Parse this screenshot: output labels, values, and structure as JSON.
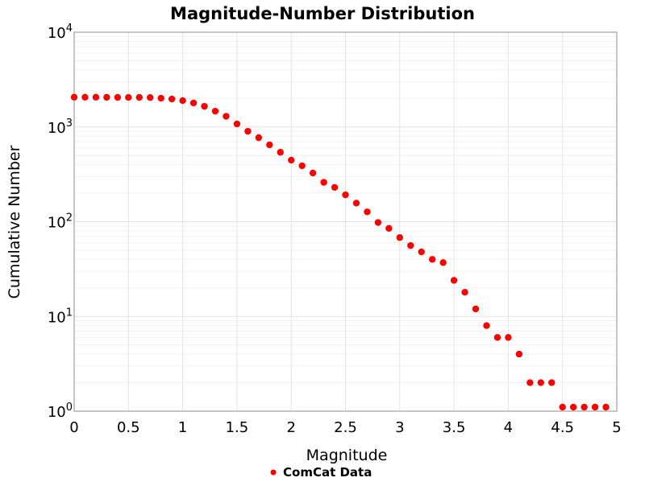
{
  "chart_data": {
    "type": "scatter",
    "title": "Magnitude-Number Distribution",
    "xlabel": "Magnitude",
    "ylabel": "Cumulative Number",
    "legend": {
      "label": "ComCat Data",
      "marker": "circle",
      "marker_color": "#ff0000",
      "position": "below-x-axis-label"
    },
    "x_axis": {
      "min": 0,
      "max": 5,
      "tick_values": [
        0,
        0.5,
        1,
        1.5,
        2,
        2.5,
        3,
        3.5,
        4,
        4.5,
        5
      ],
      "tick_labels": [
        "0",
        "0.5",
        "1",
        "1.5",
        "2",
        "2.5",
        "3",
        "3.5",
        "4",
        "4.5",
        "5"
      ]
    },
    "y_axis": {
      "scale": "log",
      "min": 1,
      "max": 10000,
      "tick_base": "10",
      "tick_exponents": [
        0,
        1,
        2,
        3,
        4
      ]
    },
    "grid": {
      "vertical_major": true,
      "horizontal_major": true,
      "horizontal_log_minor": true
    },
    "series": [
      {
        "name": "ComCat Data",
        "color": "#ff0000",
        "marker": "circle",
        "x": [
          0,
          0.1,
          0.2,
          0.3,
          0.4,
          0.5,
          0.6,
          0.7,
          0.8,
          0.9,
          1,
          1.1,
          1.2,
          1.3,
          1.4,
          1.5,
          1.6,
          1.7,
          1.8,
          1.9,
          2,
          2.1,
          2.2,
          2.3,
          2.4,
          2.5,
          2.6,
          2.7,
          2.8,
          2.9,
          3,
          3.1,
          3.2,
          3.3,
          3.4,
          3.5,
          3.6,
          3.7,
          3.8,
          3.9,
          4,
          4.1,
          4.2,
          4.3,
          4.4,
          4.5,
          4.6,
          4.7,
          4.8,
          4.9
        ],
        "y": [
          2060,
          2060,
          2058,
          2056,
          2052,
          2050,
          2048,
          2045,
          2010,
          1970,
          1895,
          1790,
          1650,
          1467,
          1295,
          1075,
          900,
          770,
          647,
          540,
          446,
          389,
          326,
          260,
          230,
          192,
          157,
          127,
          98,
          85,
          68,
          56,
          48,
          40,
          37,
          24,
          18,
          12,
          8,
          6,
          6,
          4,
          2,
          2,
          2,
          1,
          1,
          1,
          1,
          1
        ]
      }
    ]
  },
  "colors": {
    "marker": "#ff0000",
    "frame": "#b3b3b3",
    "grid_major": "#e4e4e4",
    "grid_minor": "#f2f2f2",
    "text": "#000000",
    "background": "#ffffff"
  }
}
